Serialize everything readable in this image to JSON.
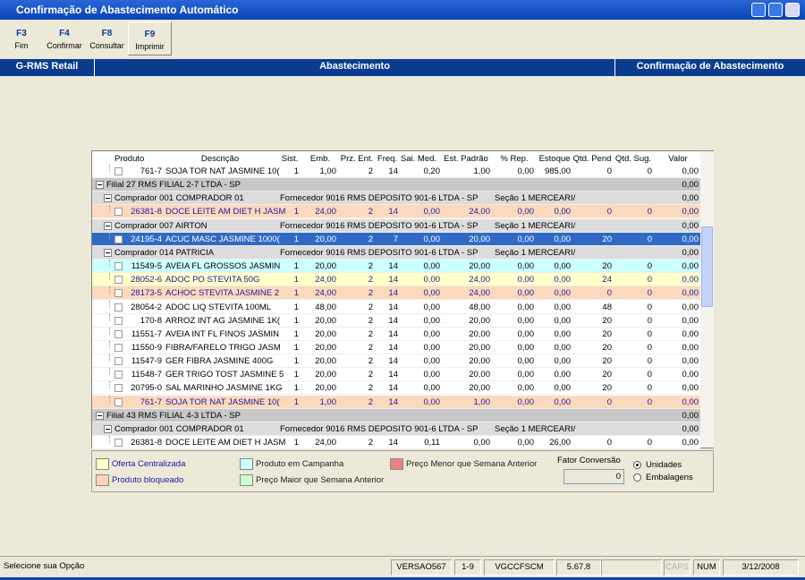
{
  "window": {
    "title": "Confirmação de Abastecimento Automático"
  },
  "toolbar": [
    {
      "key": "F3",
      "label": "Fim"
    },
    {
      "key": "F4",
      "label": "Confirmar"
    },
    {
      "key": "F8",
      "label": "Consultar"
    },
    {
      "key": "F9",
      "label": "Imprimir"
    }
  ],
  "header": {
    "app": "G-RMS Retail",
    "module": "Abastecimento",
    "screen": "Confirmação de Abastecimento"
  },
  "grid": {
    "columns": [
      "Produto",
      "Descrição",
      "Sist.",
      "Emb.",
      "Prz. Ent.",
      "Freq.",
      "Sai. Med.",
      "Est. Padrão",
      "% Rep.",
      "Estoque",
      "Qtd. Pend",
      "Qtd. Sug.",
      "Valor"
    ],
    "rows": [
      {
        "color": "#ffffff",
        "text_color": "#000000",
        "cells": [
          "761-7",
          "SOJA TOR NAT JASMINE 10(",
          "1",
          "1,00",
          "2",
          "14",
          "0,20",
          "1,00",
          "0,00",
          "985,00",
          "0",
          "0",
          "0,00"
        ]
      },
      {
        "color": "#c8c8c8",
        "label": "Filial 27 RMS FILIAL 2-7 LTDA - SP",
        "valor": "0,00"
      },
      {
        "color": "#dcdcdc",
        "label": "Comprador 001 COMPRADOR 01",
        "fornecedor": "Fornecedor 9016 RMS DEPOSITO 901-6 LTDA - SP",
        "secao": "Seção 1 MERCEARI/",
        "valor": "0,00"
      },
      {
        "color": "#fcd9bd",
        "text_color": "#1a1aa0",
        "cells": [
          "26381-8",
          "DOCE LEITE AM DIET H JASM",
          "1",
          "24,00",
          "2",
          "14",
          "0,00",
          "24,00",
          "0,00",
          "0,00",
          "0",
          "0",
          "0,00"
        ]
      },
      {
        "color": "#dcdcdc",
        "label": "Comprador 007 AIRTON",
        "fornecedor": "Fornecedor 9016 RMS DEPOSITO 901-6 LTDA - SP",
        "secao": "Seção 1 MERCEARI/",
        "valor": "0,00"
      },
      {
        "color": "#316ac5",
        "text_color": "#ffffff",
        "cells": [
          "24195-4",
          "ACUC MASC JASMINE 1000(",
          "1",
          "20,00",
          "2",
          "7",
          "0,00",
          "20,00",
          "0,00",
          "0,00",
          "20",
          "0",
          "0,00"
        ]
      },
      {
        "color": "#dcdcdc",
        "label": "Comprador 014 PATRICIA",
        "fornecedor": "Fornecedor 9016 RMS DEPOSITO 901-6 LTDA - SP",
        "secao": "Seção 1 MERCEARI/",
        "valor": "0,00"
      },
      {
        "color": "#ccffff",
        "text_color": "#000000",
        "cells": [
          "11549-5",
          "AVEIA FL GROSSOS JASMIN",
          "1",
          "20,00",
          "2",
          "14",
          "0,00",
          "20,00",
          "0,00",
          "0,00",
          "20",
          "0",
          "0,00"
        ]
      },
      {
        "color": "#ffffc8",
        "text_color": "#1a1aa0",
        "cells": [
          "28052-6",
          "ADOC PO STEVITA 50G",
          "1",
          "24,00",
          "2",
          "14",
          "0,00",
          "24,00",
          "0,00",
          "0,00",
          "24",
          "0",
          "0,00"
        ]
      },
      {
        "color": "#fcd9bd",
        "text_color": "#1a1aa0",
        "cells": [
          "28173-5",
          "ACHOC STEVITA JASMINE 2",
          "1",
          "24,00",
          "2",
          "14",
          "0,00",
          "24,00",
          "0,00",
          "0,00",
          "0",
          "0",
          "0,00"
        ]
      },
      {
        "color": "#ffffff",
        "text_color": "#000000",
        "cells": [
          "28054-2",
          "ADOC LIQ STEVITA 100ML",
          "1",
          "48,00",
          "2",
          "14",
          "0,00",
          "48,00",
          "0,00",
          "0,00",
          "48",
          "0",
          "0,00"
        ]
      },
      {
        "color": "#ffffff",
        "text_color": "#000000",
        "cells": [
          "170-8",
          "ARROZ INT AG JASMINE 1K(",
          "1",
          "20,00",
          "2",
          "14",
          "0,00",
          "20,00",
          "0,00",
          "0,00",
          "20",
          "0",
          "0,00"
        ]
      },
      {
        "color": "#ffffff",
        "text_color": "#000000",
        "cells": [
          "11551-7",
          "AVEIA INT FL FINOS JASMIN",
          "1",
          "20,00",
          "2",
          "14",
          "0,00",
          "20,00",
          "0,00",
          "0,00",
          "20",
          "0",
          "0,00"
        ]
      },
      {
        "color": "#ffffff",
        "text_color": "#000000",
        "cells": [
          "11550-9",
          "FIBRA/FARELO TRIGO JASM",
          "1",
          "20,00",
          "2",
          "14",
          "0,00",
          "20,00",
          "0,00",
          "0,00",
          "20",
          "0",
          "0,00"
        ]
      },
      {
        "color": "#ffffff",
        "text_color": "#000000",
        "cells": [
          "11547-9",
          "GER FIBRA JASMINE 400G",
          "1",
          "20,00",
          "2",
          "14",
          "0,00",
          "20,00",
          "0,00",
          "0,00",
          "20",
          "0",
          "0,00"
        ]
      },
      {
        "color": "#ffffff",
        "text_color": "#000000",
        "cells": [
          "11548-7",
          "GER TRIGO TOST JASMINE 5",
          "1",
          "20,00",
          "2",
          "14",
          "0,00",
          "20,00",
          "0,00",
          "0,00",
          "20",
          "0",
          "0,00"
        ]
      },
      {
        "color": "#ffffff",
        "text_color": "#000000",
        "cells": [
          "20795-0",
          "SAL MARINHO JASMINE 1KG",
          "1",
          "20,00",
          "2",
          "14",
          "0,00",
          "20,00",
          "0,00",
          "0,00",
          "20",
          "0",
          "0,00"
        ]
      },
      {
        "color": "#fcd9bd",
        "text_color": "#1a1aa0",
        "cells": [
          "761-7",
          "SOJA TOR NAT JASMINE 10(",
          "1",
          "1,00",
          "2",
          "14",
          "0,00",
          "1,00",
          "0,00",
          "0,00",
          "0",
          "0",
          "0,00"
        ]
      },
      {
        "color": "#c8c8c8",
        "label": "Filial 43 RMS FILIAL 4-3 LTDA - SP",
        "valor": "0,00"
      },
      {
        "color": "#dcdcdc",
        "label": "Comprador 001 COMPRADOR 01",
        "fornecedor": "Fornecedor 9016 RMS DEPOSITO 901-6 LTDA - SP",
        "secao": "Seção 1 MERCEARI/",
        "valor": "0,00"
      },
      {
        "color": "#ffffff",
        "text_color": "#000000",
        "cells": [
          "26381-8",
          "DOCE LEITE AM DIET H JASM",
          "1",
          "24,00",
          "2",
          "14",
          "0,11",
          "0,00",
          "0,00",
          "26,00",
          "0",
          "0",
          "0,00"
        ]
      }
    ]
  },
  "legend": {
    "items": [
      {
        "label": "Oferta Centralizada",
        "color": "#ffffc8"
      },
      {
        "label": "Produto bloqueado",
        "color": "#fcd5b4"
      },
      {
        "label": "Produto em Campanha",
        "color": "#ccffff"
      },
      {
        "label": "Preço Maior que Semana Anterior",
        "color": "#ccffcc"
      },
      {
        "label": "Preço Menor que Semana Anterior",
        "color": "#f08080"
      }
    ],
    "fator": {
      "label": "Fator Conversão",
      "value": "0"
    },
    "options": [
      "Unidades",
      "Embalagens"
    ],
    "selected": 0
  },
  "status": [
    "Selecione sua Opção",
    "VERSAO567",
    "1-9",
    "VGCCFSCM",
    "5.67.8",
    "",
    "CAPS",
    "NUM",
    "3/12/2008"
  ]
}
